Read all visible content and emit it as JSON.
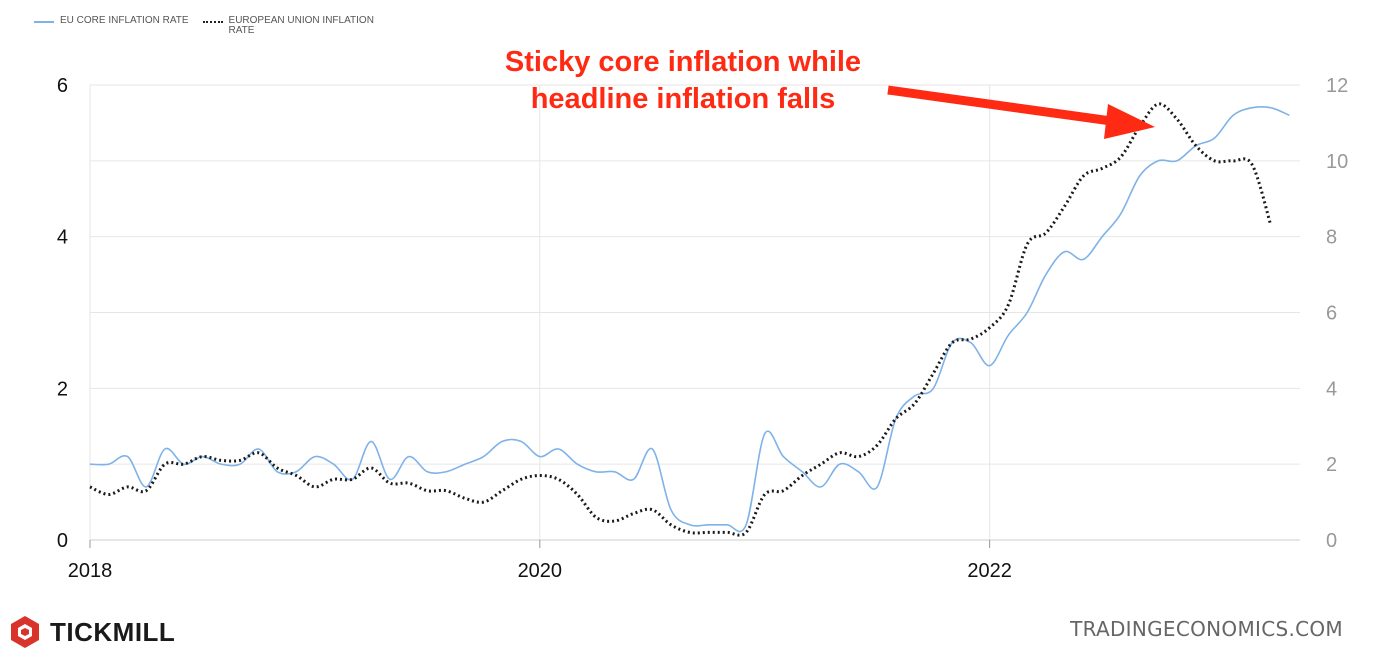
{
  "legend": {
    "series_1": "EU CORE INFLATION RATE",
    "series_2": "EUROPEAN UNION INFLATION RATE"
  },
  "annotation": {
    "line_1": "Sticky core inflation while",
    "line_2": "headline inflation falls"
  },
  "branding": {
    "logo_text": "TICKMILL",
    "source": "TRADINGECONOMICS.COM"
  },
  "colors": {
    "core_line": "#7fb2e8",
    "headline_line": "#1a1a1a",
    "annotation": "#ff2a14",
    "logo": "#d9342b"
  },
  "chart_data": {
    "type": "line",
    "x_tick_labels": [
      "2018",
      "2020",
      "2022"
    ],
    "x_ticks": [
      2018,
      2020,
      2022
    ],
    "xlim": [
      2018,
      2023.38
    ],
    "y_left": {
      "lim": [
        0,
        6
      ],
      "ticks": [
        0,
        2,
        4,
        6
      ]
    },
    "y_right": {
      "lim": [
        0,
        12
      ],
      "ticks": [
        0,
        2,
        4,
        6,
        8,
        10,
        12
      ]
    },
    "grid": true,
    "legend_position": "top-left",
    "series": [
      {
        "name": "EU CORE INFLATION RATE",
        "axis": "left",
        "style": "solid",
        "x": [
          2018.0,
          2018.083,
          2018.167,
          2018.25,
          2018.333,
          2018.417,
          2018.5,
          2018.583,
          2018.667,
          2018.75,
          2018.833,
          2018.917,
          2019.0,
          2019.083,
          2019.167,
          2019.25,
          2019.333,
          2019.417,
          2019.5,
          2019.583,
          2019.667,
          2019.75,
          2019.833,
          2019.917,
          2020.0,
          2020.083,
          2020.167,
          2020.25,
          2020.333,
          2020.417,
          2020.5,
          2020.583,
          2020.667,
          2020.75,
          2020.833,
          2020.917,
          2021.0,
          2021.083,
          2021.167,
          2021.25,
          2021.333,
          2021.417,
          2021.5,
          2021.583,
          2021.667,
          2021.75,
          2021.833,
          2021.917,
          2022.0,
          2022.083,
          2022.167,
          2022.25,
          2022.333,
          2022.417,
          2022.5,
          2022.583,
          2022.667,
          2022.75,
          2022.833,
          2022.917,
          2023.0,
          2023.083,
          2023.167,
          2023.25,
          2023.333
        ],
        "values": [
          1.0,
          1.0,
          1.1,
          0.7,
          1.2,
          1.0,
          1.1,
          1.0,
          1.0,
          1.2,
          0.9,
          0.9,
          1.1,
          1.0,
          0.8,
          1.3,
          0.8,
          1.1,
          0.9,
          0.9,
          1.0,
          1.1,
          1.3,
          1.3,
          1.1,
          1.2,
          1.0,
          0.9,
          0.9,
          0.8,
          1.2,
          0.4,
          0.2,
          0.2,
          0.2,
          0.2,
          1.4,
          1.1,
          0.9,
          0.7,
          1.0,
          0.9,
          0.7,
          1.6,
          1.9,
          2.0,
          2.6,
          2.6,
          2.3,
          2.7,
          3.0,
          3.5,
          3.8,
          3.7,
          4.0,
          4.3,
          4.8,
          5.0,
          5.0,
          5.2,
          5.3,
          5.6,
          5.7,
          5.7,
          5.6
        ]
      },
      {
        "name": "EUROPEAN UNION INFLATION RATE",
        "axis": "right",
        "style": "dotted",
        "x": [
          2018.0,
          2018.083,
          2018.167,
          2018.25,
          2018.333,
          2018.417,
          2018.5,
          2018.583,
          2018.667,
          2018.75,
          2018.833,
          2018.917,
          2019.0,
          2019.083,
          2019.167,
          2019.25,
          2019.333,
          2019.417,
          2019.5,
          2019.583,
          2019.667,
          2019.75,
          2019.833,
          2019.917,
          2020.0,
          2020.083,
          2020.167,
          2020.25,
          2020.333,
          2020.417,
          2020.5,
          2020.583,
          2020.667,
          2020.75,
          2020.833,
          2020.917,
          2021.0,
          2021.083,
          2021.167,
          2021.25,
          2021.333,
          2021.417,
          2021.5,
          2021.583,
          2021.667,
          2021.75,
          2021.833,
          2021.917,
          2022.0,
          2022.083,
          2022.167,
          2022.25,
          2022.333,
          2022.417,
          2022.5,
          2022.583,
          2022.667,
          2022.75,
          2022.833,
          2022.917,
          2023.0,
          2023.083,
          2023.167,
          2023.25
        ],
        "values": [
          1.4,
          1.2,
          1.4,
          1.3,
          2.0,
          2.0,
          2.2,
          2.1,
          2.1,
          2.3,
          1.9,
          1.7,
          1.4,
          1.6,
          1.6,
          1.9,
          1.5,
          1.5,
          1.3,
          1.3,
          1.1,
          1.0,
          1.3,
          1.6,
          1.7,
          1.6,
          1.2,
          0.6,
          0.5,
          0.7,
          0.8,
          0.4,
          0.2,
          0.2,
          0.2,
          0.2,
          1.2,
          1.3,
          1.7,
          2.0,
          2.3,
          2.2,
          2.5,
          3.2,
          3.6,
          4.4,
          5.2,
          5.3,
          5.6,
          6.2,
          7.8,
          8.1,
          8.8,
          9.6,
          9.8,
          10.1,
          10.9,
          11.5,
          11.1,
          10.4,
          10.0,
          10.0,
          9.9,
          8.3
        ]
      }
    ]
  }
}
